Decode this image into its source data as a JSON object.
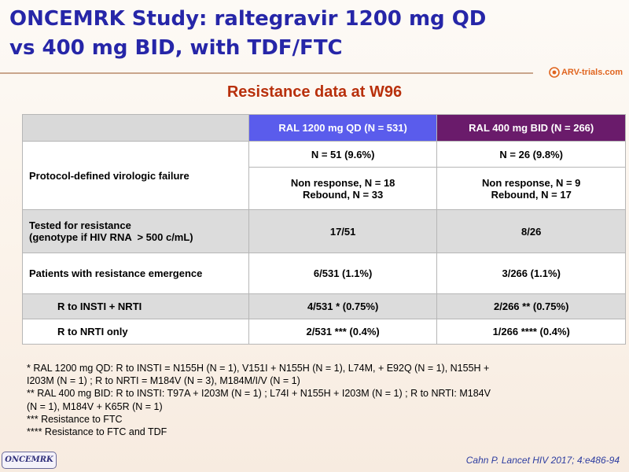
{
  "slide": {
    "title_line1": "ONCEMRK Study: raltegravir 1200 mg QD",
    "title_line2": "vs 400 mg BID, with TDF/FTC",
    "logo_text": "ARV-trials.com",
    "subtitle": "Resistance data at W96"
  },
  "table": {
    "headers": [
      "RAL 1200 mg QD (N = 531)",
      "RAL 400 mg BID (N = 266)"
    ],
    "rows": [
      {
        "label": "Protocol-defined virologic failure",
        "v1a": "N = 51 (9.6%)",
        "v2a": "N = 26 (9.8%)",
        "v1b": "Non response, N = 18",
        "v1c": "Rebound, N = 33",
        "v2b": "Non response, N = 9",
        "v2c": "Rebound, N = 17"
      },
      {
        "label1": "Tested for resistance",
        "label2": "(genotype if HIV RNA  > 500 c/mL)",
        "v1": "17/51",
        "v2": "8/26"
      },
      {
        "label": "Patients with resistance emergence",
        "v1": "6/531 (1.1%)",
        "v2": "3/266 (1.1%)"
      },
      {
        "label": "R to INSTI + NRTI",
        "v1": "4/531 * (0.75%)",
        "v2": "2/266 ** (0.75%)"
      },
      {
        "label": "R to NRTI only",
        "v1": "2/531 *** (0.4%)",
        "v2": "1/266 **** (0.4%)"
      }
    ]
  },
  "footnotes": [
    "* RAL 1200 mg QD: R to INSTI = N155H (N = 1), V151I + N155H (N = 1), L74M, + E92Q (N = 1), N155H +",
    "I203M (N = 1) ; R to NRTI = M184V (N = 3), M184M/I/V (N = 1)",
    "** RAL 400 mg BID: R to INSTI: T97A + I203M (N = 1) ; L74I + N155H + I203M (N = 1) ; R to NRTI: M184V",
    "(N = 1), M184V + K65R (N = 1)",
    "*** Resistance to FTC",
    "**** Resistance to FTC and TDF"
  ],
  "badge": "ONCEMRK",
  "citation": "Cahn P. Lancet HIV 2017; 4:e486-94",
  "colors": {
    "title": "#2626a8",
    "subtitle": "#b8300c",
    "header_qd": "#5a5cec",
    "header_bid": "#6a1b6b"
  }
}
